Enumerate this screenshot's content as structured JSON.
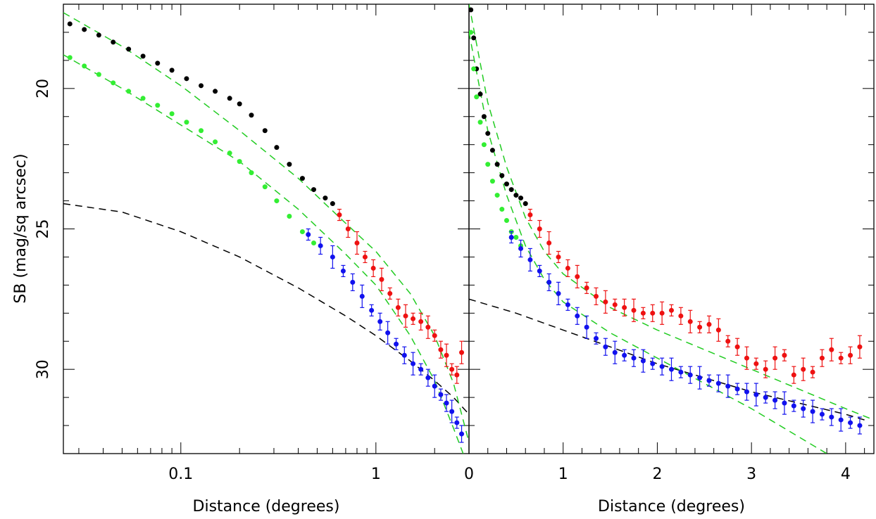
{
  "figure": {
    "ylabel": "SB (mag/sq arcsec)",
    "colors": {
      "black": "#000000",
      "green": "#33ee33",
      "red": "#ee1111",
      "blue": "#1111ee",
      "fit_green": "#22cc22"
    }
  },
  "chart_data": [
    {
      "type": "scatter",
      "panel": "left",
      "xlabel": "Distance (degrees)",
      "ylabel": "SB (mag/sq arcsec)",
      "x_scale": "log",
      "xlim": [
        0.025,
        3.0
      ],
      "ylim": [
        17.0,
        33.0
      ],
      "y_inverted": true,
      "x_tick_labels": [
        "0.1",
        "1"
      ],
      "y_tick_labels": [
        "20",
        "25",
        "30"
      ],
      "series": [
        {
          "color": "black",
          "marker": "dot",
          "x": [
            0.027,
            0.032,
            0.038,
            0.045,
            0.054,
            0.064,
            0.076,
            0.09,
            0.107,
            0.127,
            0.15,
            0.178,
            0.2,
            0.23,
            0.27,
            0.31,
            0.36,
            0.42,
            0.48,
            0.55,
            0.6
          ],
          "y": [
            17.7,
            17.9,
            18.1,
            18.35,
            18.6,
            18.85,
            19.1,
            19.35,
            19.65,
            19.9,
            20.1,
            20.35,
            20.55,
            20.95,
            21.5,
            22.1,
            22.7,
            23.2,
            23.6,
            23.9,
            24.1
          ]
        },
        {
          "color": "green",
          "marker": "dot",
          "x": [
            0.027,
            0.032,
            0.038,
            0.045,
            0.054,
            0.064,
            0.076,
            0.09,
            0.107,
            0.127,
            0.15,
            0.178,
            0.2,
            0.23,
            0.27,
            0.31,
            0.36,
            0.42,
            0.48
          ],
          "y": [
            18.9,
            19.2,
            19.5,
            19.8,
            20.1,
            20.35,
            20.6,
            20.9,
            21.2,
            21.5,
            21.9,
            22.3,
            22.6,
            23.0,
            23.5,
            24.0,
            24.55,
            25.1,
            25.5
          ]
        },
        {
          "color": "red",
          "marker": "dot",
          "errorbars": true,
          "x": [
            0.65,
            0.72,
            0.8,
            0.88,
            0.97,
            1.07,
            1.18,
            1.3,
            1.42,
            1.55,
            1.7,
            1.85,
            2.0,
            2.15,
            2.3,
            2.45,
            2.6,
            2.75
          ],
          "y": [
            24.5,
            25.0,
            25.5,
            26.0,
            26.4,
            26.8,
            27.3,
            27.8,
            28.1,
            28.2,
            28.3,
            28.5,
            28.8,
            29.3,
            29.5,
            30.0,
            30.2,
            29.4
          ]
        },
        {
          "color": "blue",
          "marker": "dot",
          "errorbars": true,
          "x": [
            0.45,
            0.52,
            0.6,
            0.68,
            0.76,
            0.85,
            0.95,
            1.05,
            1.15,
            1.27,
            1.4,
            1.55,
            1.7,
            1.85,
            2.0,
            2.15,
            2.3,
            2.45,
            2.6,
            2.75
          ],
          "y": [
            25.2,
            25.6,
            26.0,
            26.5,
            26.9,
            27.4,
            27.9,
            28.3,
            28.7,
            29.1,
            29.5,
            29.8,
            30.0,
            30.3,
            30.6,
            30.9,
            31.2,
            31.5,
            31.9,
            32.3
          ]
        }
      ],
      "fits": [
        {
          "color": "black",
          "style": "dashed",
          "x": [
            0.025,
            0.05,
            0.1,
            0.2,
            0.4,
            0.7,
            1.0,
            1.5,
            2.0,
            2.5,
            3.0
          ],
          "y": [
            24.1,
            24.4,
            25.1,
            26.0,
            27.1,
            28.1,
            28.8,
            29.7,
            30.4,
            31.0,
            31.6
          ]
        },
        {
          "color": "green",
          "style": "dashed",
          "x": [
            0.025,
            0.05,
            0.1,
            0.2,
            0.4,
            0.7,
            1.0,
            1.5,
            2.0,
            2.5,
            3.0
          ],
          "y": [
            17.3,
            18.5,
            19.9,
            21.5,
            23.2,
            24.8,
            25.8,
            27.3,
            28.8,
            30.5,
            32.6
          ]
        },
        {
          "color": "green",
          "style": "dashed",
          "x": [
            0.025,
            0.05,
            0.1,
            0.2,
            0.4,
            0.7,
            1.0,
            1.5,
            2.0,
            2.5,
            2.8
          ],
          "y": [
            18.8,
            20.0,
            21.3,
            22.6,
            24.3,
            25.9,
            27.0,
            28.8,
            30.4,
            32.1,
            33.0
          ]
        }
      ]
    },
    {
      "type": "scatter",
      "panel": "right",
      "xlabel": "Distance (degrees)",
      "xlim": [
        0,
        4.3
      ],
      "ylim": [
        17.0,
        33.0
      ],
      "y_inverted": true,
      "x_tick_labels": [
        "0",
        "1",
        "2",
        "3",
        "4"
      ],
      "series": [
        {
          "color": "black",
          "marker": "dot",
          "x": [
            0.02,
            0.05,
            0.08,
            0.12,
            0.16,
            0.2,
            0.25,
            0.3,
            0.35,
            0.4,
            0.45,
            0.5,
            0.55,
            0.6
          ],
          "y": [
            17.2,
            18.2,
            19.3,
            20.2,
            21.0,
            21.6,
            22.2,
            22.7,
            23.1,
            23.4,
            23.6,
            23.8,
            23.9,
            24.1
          ]
        },
        {
          "color": "green",
          "marker": "dot",
          "x": [
            0.02,
            0.05,
            0.08,
            0.12,
            0.16,
            0.2,
            0.25,
            0.3,
            0.35,
            0.4,
            0.45,
            0.5,
            0.55
          ],
          "y": [
            18.0,
            19.3,
            20.3,
            21.2,
            22.0,
            22.7,
            23.3,
            23.8,
            24.3,
            24.7,
            25.1,
            25.3,
            25.6
          ]
        },
        {
          "color": "red",
          "marker": "dot",
          "errorbars": true,
          "x": [
            0.65,
            0.75,
            0.85,
            0.95,
            1.05,
            1.15,
            1.25,
            1.35,
            1.45,
            1.55,
            1.65,
            1.75,
            1.85,
            1.95,
            2.05,
            2.15,
            2.25,
            2.35,
            2.45,
            2.55,
            2.65,
            2.75,
            2.85,
            2.95,
            3.05,
            3.15,
            3.25,
            3.35,
            3.45,
            3.55,
            3.65,
            3.75,
            3.85,
            3.95,
            4.05,
            4.15
          ],
          "y": [
            24.5,
            25.0,
            25.5,
            26.0,
            26.4,
            26.7,
            27.1,
            27.4,
            27.6,
            27.7,
            27.8,
            27.9,
            28.0,
            28.0,
            28.0,
            27.9,
            28.1,
            28.3,
            28.5,
            28.4,
            28.6,
            29.0,
            29.2,
            29.6,
            29.8,
            30.0,
            29.6,
            29.5,
            30.2,
            30.0,
            30.1,
            29.6,
            29.3,
            29.6,
            29.5,
            29.2
          ]
        },
        {
          "color": "blue",
          "marker": "dot",
          "errorbars": true,
          "x": [
            0.45,
            0.55,
            0.65,
            0.75,
            0.85,
            0.95,
            1.05,
            1.15,
            1.25,
            1.35,
            1.45,
            1.55,
            1.65,
            1.75,
            1.85,
            1.95,
            2.05,
            2.15,
            2.25,
            2.35,
            2.45,
            2.55,
            2.65,
            2.75,
            2.85,
            2.95,
            3.05,
            3.15,
            3.25,
            3.35,
            3.45,
            3.55,
            3.65,
            3.75,
            3.85,
            3.95,
            4.05,
            4.15
          ],
          "y": [
            25.3,
            25.7,
            26.1,
            26.5,
            26.9,
            27.3,
            27.7,
            28.1,
            28.5,
            28.9,
            29.2,
            29.4,
            29.5,
            29.6,
            29.7,
            29.8,
            29.9,
            30.0,
            30.1,
            30.2,
            30.3,
            30.4,
            30.5,
            30.6,
            30.7,
            30.8,
            30.9,
            31.0,
            31.1,
            31.2,
            31.3,
            31.4,
            31.5,
            31.6,
            31.7,
            31.8,
            31.9,
            32.0
          ]
        }
      ],
      "fits": [
        {
          "color": "black",
          "style": "dashed",
          "x": [
            0,
            0.5,
            1,
            1.5,
            2,
            2.5,
            3,
            3.5,
            4,
            4.2
          ],
          "y": [
            27.5,
            28.0,
            28.6,
            29.2,
            29.8,
            30.3,
            30.8,
            31.2,
            31.6,
            31.8
          ]
        },
        {
          "color": "green",
          "style": "dashed",
          "x": [
            0,
            0.2,
            0.4,
            0.6,
            0.8,
            1.0,
            1.5,
            2.0,
            2.5,
            3.0,
            3.5,
            4.0,
            4.3
          ],
          "y": [
            17.0,
            20.5,
            22.8,
            24.6,
            25.8,
            26.6,
            27.8,
            28.6,
            29.3,
            30.0,
            30.7,
            31.4,
            31.8
          ]
        },
        {
          "color": "green",
          "style": "dashed",
          "x": [
            0,
            0.2,
            0.4,
            0.6,
            0.8,
            1.0,
            1.5,
            2.0,
            2.5,
            3.0,
            3.5,
            3.8
          ],
          "y": [
            18.0,
            21.5,
            23.8,
            25.6,
            26.8,
            27.6,
            28.7,
            29.6,
            30.5,
            31.4,
            32.4,
            33.0
          ]
        }
      ]
    }
  ]
}
